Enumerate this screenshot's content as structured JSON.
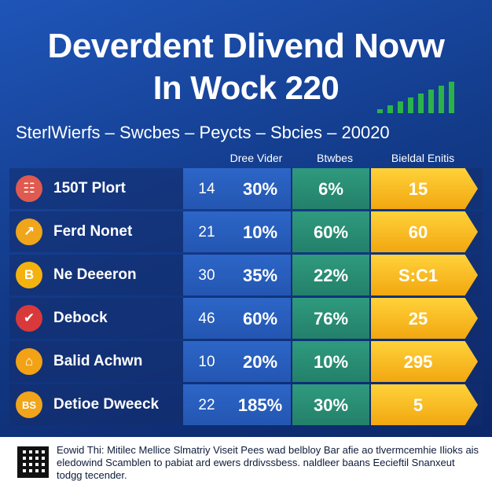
{
  "title": {
    "line1": "Deverdent Dlivend Novw",
    "line2": "In Wock 220"
  },
  "subtitle": "SterlWierfs – Swcbes  – Peycts   – Sbcies – 20020",
  "sparkline": {
    "color": "#2bb34a",
    "values": [
      1,
      2,
      3,
      4,
      5,
      6,
      7,
      8
    ]
  },
  "headers": {
    "col_a": "Dree Vider",
    "col_b": "Btwbes",
    "col_c": "Bieldal Enitis"
  },
  "colors": {
    "col_a": "#2c66c7",
    "col_b": "#2f9a7e",
    "col_c": "#f2a710"
  },
  "rows": [
    {
      "icon": "people-icon",
      "icon_glyph": "☷",
      "icon_color": "#e05a4f",
      "label": "150T Plort",
      "num": "14",
      "pct": "30%",
      "b": "6%",
      "c": "15"
    },
    {
      "icon": "chart-icon",
      "icon_glyph": "↗",
      "icon_color": "#f0a51b",
      "label": "Ferd Nonet",
      "num": "21",
      "pct": "10%",
      "b": "60%",
      "c": "60"
    },
    {
      "icon": "bitcoin-icon",
      "icon_glyph": "B",
      "icon_color": "#f4b20f",
      "label": "Ne Deeeron",
      "num": "30",
      "pct": "35%",
      "b": "22%",
      "c": "S:C1"
    },
    {
      "icon": "check-icon",
      "icon_glyph": "✔",
      "icon_color": "#d9393b",
      "label": "Debock",
      "num": "46",
      "pct": "60%",
      "b": "76%",
      "c": "25"
    },
    {
      "icon": "house-icon",
      "icon_glyph": "⌂",
      "icon_color": "#f2a214",
      "label": "Balid Achwn",
      "num": "10",
      "pct": "20%",
      "b": "10%",
      "c": "295"
    },
    {
      "icon": "bs-badge-icon",
      "icon_glyph": "BS",
      "icon_color": "#f0a51b",
      "label": "Detioe Dweeck",
      "num": "22",
      "pct": "185%",
      "b": "30%",
      "c": "5"
    }
  ],
  "footer": {
    "text": "Eowid Thi: Mitilec Mellice Slmatriy Viseit Pees wad belbloy Bar afie ao tlvermcemhie Ilioks ais eledowind Scamblen to pabiat ard ewers drdivssbess. naldleer baans Eecieftil Snanxeut todgg tecender."
  }
}
